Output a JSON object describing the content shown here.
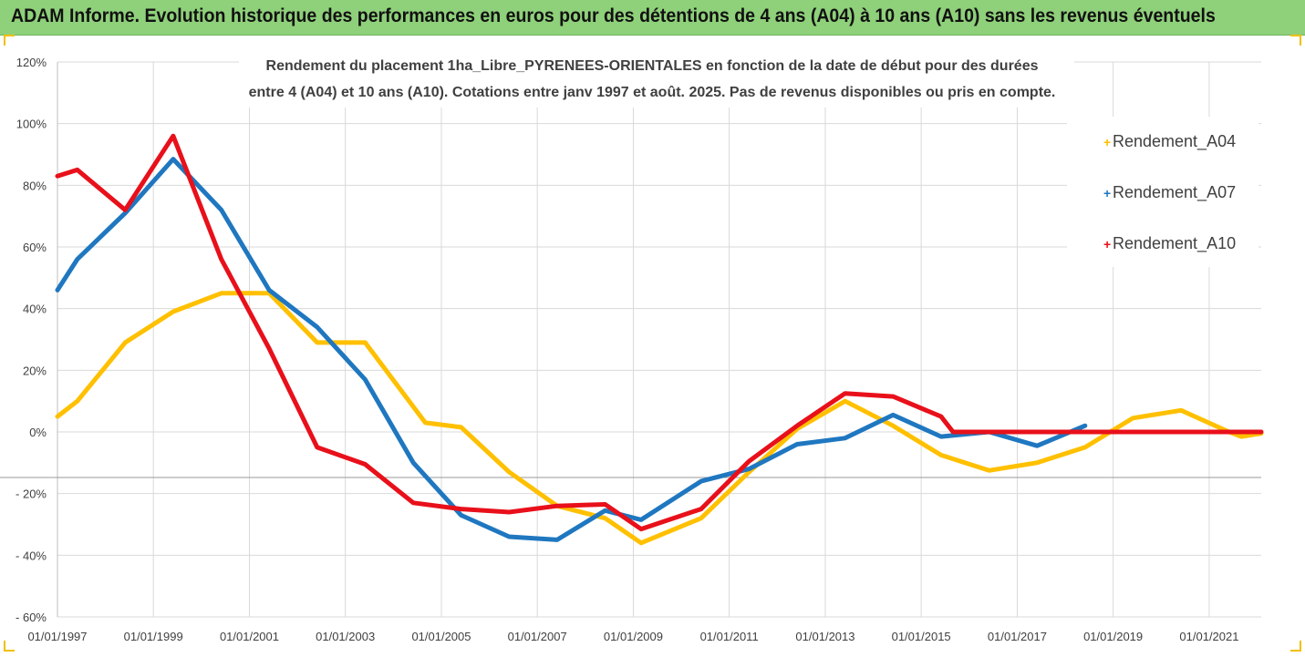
{
  "banner": {
    "title": "ADAM Informe. Evolution historique des performances en euros pour des détentions de 4 ans (A04) à 10 ans (A10) sans les revenus éventuels"
  },
  "colors": {
    "banner_bg": "#8fd07a",
    "A04": "#ffc000",
    "A07": "#1f77c0",
    "A10": "#e8101a",
    "grid": "#d9d9d9"
  },
  "chart_data": {
    "type": "line",
    "title_line1": "Rendement du placement 1ha_Libre_PYRENEES-ORIENTALES en fonction de la date de début pour des durées",
    "title_line2": "entre 4 (A04) et 10 ans (A10). Cotations entre janv 1997 et août. 2025. Pas de revenus disponibles ou pris en compte.",
    "y_ticks": [
      "120%",
      "100%",
      "80%",
      "60%",
      "40%",
      "20%",
      "0%",
      "- 20%",
      "- 40%",
      "- 60%"
    ],
    "ylim": [
      -60,
      120
    ],
    "y_unit": "%",
    "x_ticks": [
      "01/01/1997",
      "01/01/1999",
      "01/01/2001",
      "01/01/2003",
      "01/01/2005",
      "01/01/2007",
      "01/01/2009",
      "01/01/2011",
      "01/01/2013",
      "01/01/2015",
      "01/01/2017",
      "01/01/2019",
      "01/01/2021"
    ],
    "xlim": [
      "1997-01-01",
      "2022-02-01"
    ],
    "legend_position": "top-right",
    "grid": true,
    "series": [
      {
        "name": "Rendement_A04",
        "color_key": "A04",
        "points": [
          [
            "1997-01-01",
            5
          ],
          [
            "1997-06-01",
            10
          ],
          [
            "1998-06-01",
            29
          ],
          [
            "1999-06-01",
            39
          ],
          [
            "2000-06-01",
            45
          ],
          [
            "2001-06-01",
            45
          ],
          [
            "2002-06-01",
            29
          ],
          [
            "2003-06-01",
            29
          ],
          [
            "2004-09-01",
            3
          ],
          [
            "2005-06-01",
            1.5
          ],
          [
            "2006-06-01",
            -13
          ],
          [
            "2007-06-01",
            -24
          ],
          [
            "2008-06-01",
            -28
          ],
          [
            "2009-03-01",
            -36
          ],
          [
            "2010-06-01",
            -28
          ],
          [
            "2011-06-01",
            -13
          ],
          [
            "2012-06-01",
            1
          ],
          [
            "2013-06-01",
            10
          ],
          [
            "2014-06-01",
            2
          ],
          [
            "2015-06-01",
            -7.5
          ],
          [
            "2016-06-01",
            -12.5
          ],
          [
            "2017-06-01",
            -10
          ],
          [
            "2018-06-01",
            -5
          ],
          [
            "2019-06-01",
            4.5
          ],
          [
            "2020-06-01",
            7
          ],
          [
            "2021-06-01",
            0
          ],
          [
            "2021-09-01",
            -1.5
          ],
          [
            "2022-02-01",
            -0.5
          ]
        ]
      },
      {
        "name": "Rendement_A07",
        "color_key": "A07",
        "points": [
          [
            "1997-01-01",
            46
          ],
          [
            "1997-06-01",
            56
          ],
          [
            "1998-06-01",
            71
          ],
          [
            "1999-06-01",
            88.5
          ],
          [
            "2000-06-01",
            72
          ],
          [
            "2001-06-01",
            46
          ],
          [
            "2002-06-01",
            34
          ],
          [
            "2003-06-01",
            17
          ],
          [
            "2004-06-01",
            -10
          ],
          [
            "2005-06-01",
            -27
          ],
          [
            "2006-06-01",
            -34
          ],
          [
            "2007-06-01",
            -35
          ],
          [
            "2008-06-01",
            -25.5
          ],
          [
            "2009-03-01",
            -28.5
          ],
          [
            "2010-06-01",
            -16
          ],
          [
            "2011-06-01",
            -12
          ],
          [
            "2012-06-01",
            -4
          ],
          [
            "2013-06-01",
            -2
          ],
          [
            "2014-06-01",
            5.5
          ],
          [
            "2015-06-01",
            -1.5
          ],
          [
            "2016-06-01",
            0
          ],
          [
            "2017-06-01",
            -4.5
          ],
          [
            "2018-06-01",
            2
          ]
        ]
      },
      {
        "name": "Rendement_A10",
        "color_key": "A10",
        "points": [
          [
            "1997-01-01",
            83
          ],
          [
            "1997-06-01",
            85
          ],
          [
            "1998-06-01",
            72
          ],
          [
            "1999-06-01",
            96
          ],
          [
            "2000-06-01",
            56
          ],
          [
            "2001-06-01",
            27
          ],
          [
            "2002-06-01",
            -5
          ],
          [
            "2003-06-01",
            -10.5
          ],
          [
            "2004-06-01",
            -23
          ],
          [
            "2005-06-01",
            -25
          ],
          [
            "2006-06-01",
            -26
          ],
          [
            "2007-06-01",
            -24
          ],
          [
            "2008-06-01",
            -23.5
          ],
          [
            "2009-03-01",
            -31.5
          ],
          [
            "2010-06-01",
            -25
          ],
          [
            "2011-06-01",
            -9.5
          ],
          [
            "2012-06-01",
            2
          ],
          [
            "2013-06-01",
            12.5
          ],
          [
            "2014-06-01",
            11.5
          ],
          [
            "2015-06-01",
            5
          ],
          [
            "2015-09-01",
            0
          ],
          [
            "2022-02-01",
            0
          ]
        ]
      }
    ]
  }
}
